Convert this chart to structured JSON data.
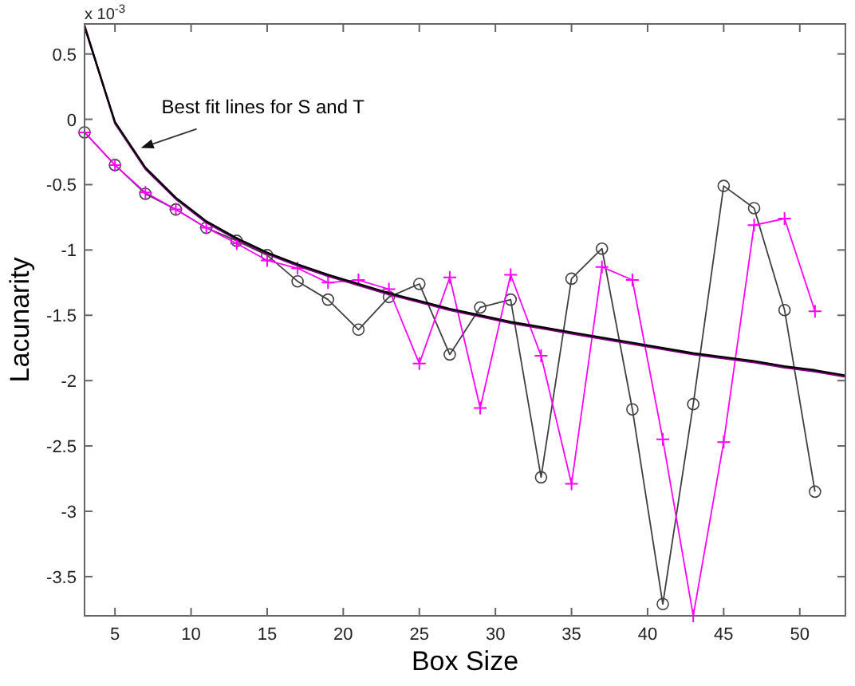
{
  "chart_data": {
    "type": "line",
    "xlabel": "Box Size",
    "ylabel": "Lacunarity",
    "xlim": [
      3,
      53
    ],
    "ylim": [
      -3.8,
      0.73
    ],
    "xticks": [
      5,
      10,
      15,
      20,
      25,
      30,
      35,
      40,
      45,
      50
    ],
    "yticks": [
      0.5,
      0,
      -0.5,
      -1,
      -1.5,
      -2,
      -2.5,
      -3,
      -3.5
    ],
    "grid": false,
    "annotations": [
      "x 10$^{-3}$",
      {
        "text": "Best fit lines for S and T",
        "x": 6.7,
        "y": -0.22
      }
    ],
    "series": [
      {
        "color": "#404040",
        "marker": "circle",
        "line_style": "solid",
        "x": [
          3,
          5,
          7,
          9,
          11,
          13,
          15,
          17,
          19,
          21,
          23,
          25,
          27,
          29,
          31,
          33,
          35,
          37,
          39,
          41,
          43,
          45,
          47,
          49,
          51
        ],
        "values": [
          -0.1,
          -0.35,
          -0.57,
          -0.69,
          -0.83,
          -0.93,
          -1.04,
          -1.24,
          -1.38,
          -1.61,
          -1.36,
          -1.26,
          -1.8,
          -1.44,
          -1.38,
          -2.74,
          -1.22,
          -0.99,
          -2.22,
          -3.71,
          -2.18,
          -0.51,
          -0.68,
          -1.46,
          -2.85
        ]
      },
      {
        "color": "#ff00ff",
        "marker": "cross",
        "line_style": "solid",
        "x": [
          3,
          5,
          7,
          9,
          11,
          13,
          15,
          17,
          19,
          21,
          23,
          25,
          27,
          29,
          31,
          33,
          35,
          37,
          39,
          41,
          43,
          45,
          47,
          49,
          51
        ],
        "values": [
          -0.1,
          -0.35,
          -0.56,
          -0.69,
          -0.83,
          -0.95,
          -1.08,
          -1.14,
          -1.25,
          -1.23,
          -1.3,
          -1.87,
          -1.21,
          -2.21,
          -1.19,
          -1.81,
          -2.79,
          -1.13,
          -1.23,
          -2.45,
          -3.8,
          -2.47,
          -0.81,
          -0.76,
          -1.47
        ]
      },
      {
        "color": "#800080",
        "marker": "none",
        "line_style": "solid",
        "x": [
          3,
          5,
          7,
          9,
          11,
          13,
          15,
          17,
          19,
          21,
          23,
          25,
          27,
          29,
          31,
          33,
          35,
          37,
          39,
          41,
          43,
          45,
          47,
          49,
          51,
          53
        ],
        "values": [
          0.72,
          -0.03,
          -0.38,
          -0.61,
          -0.79,
          -0.92,
          -1.03,
          -1.12,
          -1.2,
          -1.27,
          -1.34,
          -1.4,
          -1.46,
          -1.51,
          -1.56,
          -1.6,
          -1.64,
          -1.68,
          -1.72,
          -1.76,
          -1.8,
          -1.83,
          -1.86,
          -1.9,
          -1.93,
          -1.97
        ]
      },
      {
        "color": "#000000",
        "marker": "none",
        "line_style": "solid",
        "x": [
          3,
          5,
          7,
          9,
          11,
          13,
          15,
          17,
          19,
          21,
          23,
          25,
          27,
          29,
          31,
          33,
          35,
          37,
          39,
          41,
          43,
          45,
          47,
          49,
          51,
          53
        ],
        "values": [
          0.71,
          -0.02,
          -0.37,
          -0.6,
          -0.78,
          -0.91,
          -1.02,
          -1.11,
          -1.19,
          -1.26,
          -1.33,
          -1.39,
          -1.45,
          -1.5,
          -1.55,
          -1.59,
          -1.63,
          -1.67,
          -1.71,
          -1.75,
          -1.79,
          -1.82,
          -1.85,
          -1.89,
          -1.92,
          -1.96
        ]
      }
    ]
  }
}
